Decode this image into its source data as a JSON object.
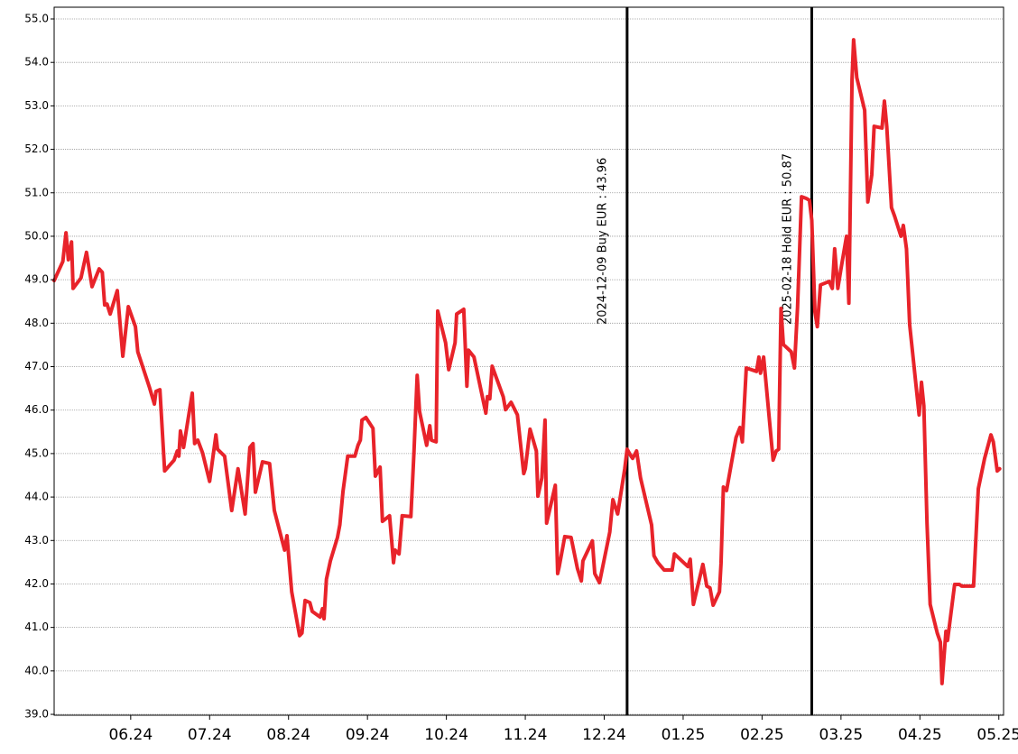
{
  "chart_data": {
    "type": "line",
    "xlim": [
      5.03,
      17.06
    ],
    "ylim": [
      38.98,
      55.27
    ],
    "grid": true,
    "xticks": [
      {
        "value": 6,
        "label": "06.24"
      },
      {
        "value": 7,
        "label": "07.24"
      },
      {
        "value": 8,
        "label": "08.24"
      },
      {
        "value": 9,
        "label": "09.24"
      },
      {
        "value": 10,
        "label": "10.24"
      },
      {
        "value": 11,
        "label": "11.24"
      },
      {
        "value": 12,
        "label": "12.24"
      },
      {
        "value": 13,
        "label": "01.25"
      },
      {
        "value": 14,
        "label": "02.25"
      },
      {
        "value": 15,
        "label": "03.25"
      },
      {
        "value": 16,
        "label": "04.25"
      },
      {
        "value": 17,
        "label": "05.25"
      }
    ],
    "yticks": [
      {
        "value": 39,
        "label": "39.0"
      },
      {
        "value": 40,
        "label": "40.0"
      },
      {
        "value": 41,
        "label": "41.0"
      },
      {
        "value": 42,
        "label": "42.0"
      },
      {
        "value": 43,
        "label": "43.0"
      },
      {
        "value": 44,
        "label": "44.0"
      },
      {
        "value": 45,
        "label": "45.0"
      },
      {
        "value": 46,
        "label": "46.0"
      },
      {
        "value": 47,
        "label": "47.0"
      },
      {
        "value": 48,
        "label": "48.0"
      },
      {
        "value": 49,
        "label": "49.0"
      },
      {
        "value": 50,
        "label": "50.0"
      },
      {
        "value": 51,
        "label": "51.0"
      },
      {
        "value": 52,
        "label": "52.0"
      },
      {
        "value": 53,
        "label": "53.0"
      },
      {
        "value": 54,
        "label": "54.0"
      },
      {
        "value": 55,
        "label": "55.0"
      }
    ],
    "annotations": [
      {
        "x": 12.29,
        "text": "2024-12-09 Buy EUR : 43.96"
      },
      {
        "x": 14.63,
        "text": "2025-02-18 Hold EUR : 50.87"
      }
    ],
    "series": [
      {
        "color": "#e8232a",
        "x": [
          5.03,
          5.14,
          5.18,
          5.21,
          5.25,
          5.27,
          5.37,
          5.44,
          5.51,
          5.6,
          5.64,
          5.67,
          5.7,
          5.74,
          5.83,
          5.9,
          5.97,
          6.06,
          6.09,
          6.24,
          6.3,
          6.32,
          6.37,
          6.43,
          6.55,
          6.59,
          6.61,
          6.63,
          6.67,
          6.78,
          6.81,
          6.85,
          6.91,
          7.0,
          7.08,
          7.1,
          7.19,
          7.28,
          7.36,
          7.45,
          7.51,
          7.55,
          7.58,
          7.67,
          7.76,
          7.82,
          7.95,
          7.98,
          8.01,
          8.04,
          8.14,
          8.17,
          8.21,
          8.27,
          8.3,
          8.4,
          8.43,
          8.45,
          8.48,
          8.53,
          8.62,
          8.65,
          8.69,
          8.75,
          8.84,
          8.88,
          8.91,
          8.93,
          8.98,
          9.07,
          9.1,
          9.16,
          9.19,
          9.28,
          9.33,
          9.35,
          9.4,
          9.44,
          9.55,
          9.59,
          9.63,
          9.66,
          9.75,
          9.79,
          9.81,
          9.87,
          9.89,
          9.99,
          10.03,
          10.11,
          10.13,
          10.22,
          10.26,
          10.28,
          10.35,
          10.5,
          10.52,
          10.55,
          10.58,
          10.72,
          10.75,
          10.82,
          10.9,
          10.98,
          11.0,
          11.06,
          11.14,
          11.16,
          11.21,
          11.25,
          11.27,
          11.38,
          11.41,
          11.43,
          11.5,
          11.58,
          11.66,
          11.71,
          11.73,
          11.85,
          11.88,
          11.94,
          12.07,
          12.11,
          12.17,
          12.26,
          12.29,
          12.34,
          12.36,
          12.41,
          12.46,
          12.6,
          12.63,
          12.68,
          12.76,
          12.86,
          12.89,
          13.06,
          13.09,
          13.13,
          13.25,
          13.3,
          13.34,
          13.38,
          13.46,
          13.48,
          13.51,
          13.55,
          13.67,
          13.72,
          13.75,
          13.8,
          13.93,
          13.96,
          13.98,
          14.02,
          14.14,
          14.18,
          14.21,
          14.24,
          14.27,
          14.37,
          14.41,
          14.45,
          14.5,
          14.56,
          14.6,
          14.63,
          14.67,
          14.7,
          14.74,
          14.85,
          14.89,
          14.92,
          14.96,
          15.0,
          15.07,
          15.1,
          15.14,
          15.16,
          15.2,
          15.3,
          15.34,
          15.39,
          15.42,
          15.52,
          15.55,
          15.58,
          15.64,
          15.68,
          15.76,
          15.79,
          15.83,
          15.87,
          15.99,
          16.02,
          16.05,
          16.09,
          16.13,
          16.22,
          16.26,
          16.28,
          16.33,
          16.35,
          16.44,
          16.5,
          16.53,
          16.68,
          16.74,
          16.82,
          16.9,
          16.93,
          16.98,
          17.01
        ],
        "values": [
          48.98,
          49.42,
          50.08,
          49.46,
          49.87,
          48.8,
          49.04,
          49.63,
          48.84,
          49.25,
          49.17,
          48.42,
          48.44,
          48.21,
          48.75,
          47.24,
          48.38,
          47.92,
          47.34,
          46.51,
          46.14,
          46.43,
          46.47,
          44.6,
          44.85,
          45.06,
          44.94,
          45.52,
          45.14,
          46.39,
          45.23,
          45.31,
          45.02,
          44.36,
          45.43,
          45.1,
          44.94,
          43.69,
          44.65,
          43.61,
          45.14,
          45.23,
          44.11,
          44.81,
          44.77,
          43.69,
          42.78,
          43.11,
          42.47,
          41.82,
          40.81,
          40.87,
          41.62,
          41.57,
          41.37,
          41.24,
          41.43,
          41.2,
          42.11,
          42.53,
          43.07,
          43.36,
          44.13,
          44.94,
          44.94,
          45.19,
          45.31,
          45.77,
          45.83,
          45.58,
          44.48,
          44.69,
          43.44,
          43.57,
          42.49,
          42.78,
          42.69,
          43.57,
          43.55,
          45.06,
          46.8,
          45.97,
          45.19,
          45.64,
          45.31,
          45.27,
          48.28,
          47.55,
          46.93,
          47.55,
          48.21,
          48.32,
          46.55,
          47.38,
          47.22,
          45.93,
          46.31,
          46.26,
          47.01,
          46.31,
          46.01,
          46.18,
          45.89,
          44.54,
          44.65,
          45.56,
          45.06,
          44.02,
          44.44,
          45.77,
          43.4,
          44.27,
          42.24,
          42.4,
          43.09,
          43.07,
          42.36,
          42.07,
          42.53,
          42.99,
          42.24,
          42.03,
          43.19,
          43.94,
          43.61,
          44.65,
          45.1,
          44.94,
          44.89,
          45.06,
          44.44,
          43.36,
          42.65,
          42.49,
          42.32,
          42.32,
          42.69,
          42.4,
          42.57,
          41.53,
          42.45,
          41.95,
          41.91,
          41.51,
          41.82,
          42.47,
          44.23,
          44.15,
          45.37,
          45.6,
          45.27,
          46.97,
          46.89,
          47.22,
          46.85,
          47.22,
          44.85,
          45.06,
          45.1,
          48.34,
          47.51,
          47.34,
          46.97,
          48.38,
          50.91,
          50.87,
          50.83,
          50.37,
          48.26,
          47.92,
          48.88,
          48.96,
          48.8,
          49.71,
          48.8,
          49.25,
          50.0,
          48.46,
          53.61,
          54.52,
          53.65,
          52.9,
          50.79,
          51.41,
          52.53,
          52.49,
          53.11,
          52.53,
          50.66,
          50.46,
          50.0,
          50.25,
          49.71,
          47.97,
          45.89,
          46.64,
          46.1,
          43.4,
          41.53,
          40.87,
          40.66,
          39.71,
          40.91,
          40.7,
          41.99,
          41.99,
          41.95,
          41.95,
          44.19,
          44.89,
          45.43,
          45.27,
          44.6,
          44.65
        ]
      }
    ]
  }
}
